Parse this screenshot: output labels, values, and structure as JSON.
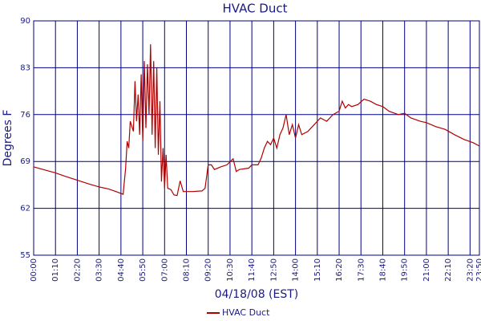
{
  "chart_data": {
    "type": "line",
    "title": "HVAC Duct",
    "x_label": "04/18/08 (EST)",
    "y_label": "Degrees F",
    "x": [
      "00:00",
      "00:30",
      "01:10",
      "01:40",
      "02:20",
      "03:00",
      "03:30",
      "04:00",
      "04:30",
      "04:47",
      "04:55",
      "05:00",
      "05:05",
      "05:10",
      "05:20",
      "05:25",
      "05:30",
      "05:35",
      "05:40",
      "05:45",
      "05:50",
      "05:55",
      "06:00",
      "06:05",
      "06:10",
      "06:15",
      "06:20",
      "06:25",
      "06:30",
      "06:35",
      "06:40",
      "06:45",
      "06:50",
      "06:55",
      "07:00",
      "07:05",
      "07:10",
      "07:20",
      "07:30",
      "07:40",
      "07:50",
      "08:00",
      "08:30",
      "09:00",
      "09:10",
      "09:20",
      "09:30",
      "09:40",
      "10:00",
      "10:20",
      "10:40",
      "10:50",
      "11:00",
      "11:30",
      "11:40",
      "12:00",
      "12:10",
      "12:20",
      "12:30",
      "12:40",
      "12:50",
      "13:00",
      "13:10",
      "13:20",
      "13:30",
      "13:40",
      "13:50",
      "14:00",
      "14:10",
      "14:20",
      "14:40",
      "15:00",
      "15:10",
      "15:20",
      "15:40",
      "15:50",
      "16:00",
      "16:20",
      "16:30",
      "16:40",
      "16:50",
      "17:00",
      "17:20",
      "17:40",
      "18:00",
      "18:20",
      "18:40",
      "19:00",
      "19:30",
      "19:50",
      "20:10",
      "20:40",
      "21:00",
      "21:30",
      "22:00",
      "22:30",
      "23:00",
      "23:30",
      "23:50"
    ],
    "series": [
      {
        "name": "HVAC Duct",
        "color": "#b00000",
        "values": [
          68.2,
          67.8,
          67.3,
          66.8,
          66.2,
          65.6,
          65.2,
          64.9,
          64.4,
          64.1,
          68,
          72,
          71,
          75,
          73.5,
          81,
          75,
          79,
          73,
          82,
          72,
          84,
          74,
          83.5,
          76,
          86.5,
          73,
          84,
          71,
          83,
          70,
          78,
          66,
          71,
          65,
          70,
          65,
          64.8,
          64,
          63.9,
          66.1,
          64.5,
          64.5,
          64.6,
          65,
          68.5,
          68.5,
          67.8,
          68.2,
          68.5,
          69.4,
          67.5,
          67.8,
          68,
          68.5,
          68.5,
          69.5,
          71,
          72,
          71.5,
          72.5,
          71,
          73,
          74,
          76,
          73,
          74.5,
          72.5,
          74.5,
          73,
          73.5,
          74.5,
          75,
          75.5,
          75,
          75.5,
          76,
          76.5,
          78,
          77,
          77.5,
          77.2,
          77.5,
          78.3,
          78,
          77.5,
          77.2,
          76.5,
          76,
          76.2,
          75.5,
          75,
          74.8,
          74.2,
          73.8,
          73,
          72.3,
          71.8,
          71.3
        ]
      }
    ],
    "xlim": [
      "00:00",
      "23:50"
    ],
    "xticks": [
      "00:00",
      "01:10",
      "02:20",
      "03:30",
      "04:40",
      "05:50",
      "07:00",
      "08:10",
      "09:20",
      "10:30",
      "11:40",
      "12:50",
      "14:00",
      "15:10",
      "16:20",
      "17:30",
      "18:40",
      "19:50",
      "21:00",
      "22:10",
      "23:20",
      "23:50"
    ],
    "ylim": [
      55,
      90
    ],
    "yticks": [
      55,
      62,
      69,
      76,
      83,
      90
    ],
    "grid": true,
    "legend": "bottom"
  }
}
